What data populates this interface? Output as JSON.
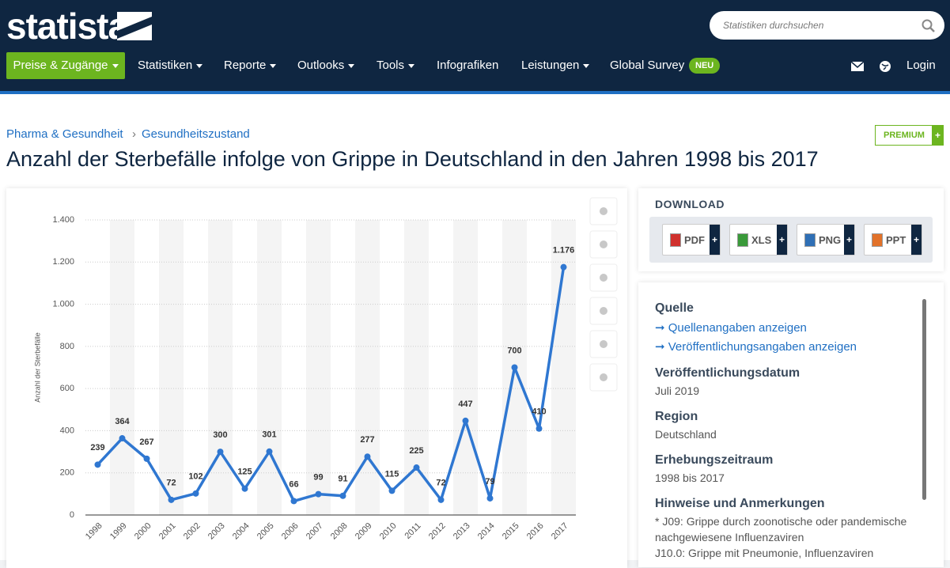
{
  "header": {
    "logo": "statista",
    "search_placeholder": "Statistiken durchsuchen",
    "nav": [
      "Preise & Zugänge",
      "Statistiken",
      "Reporte",
      "Outlooks",
      "Tools",
      "Infografiken",
      "Leistungen",
      "Global Survey"
    ],
    "nav_badge": "NEU",
    "login": "Login"
  },
  "breadcrumb": [
    "Pharma & Gesundheit",
    "Gesundheitszustand"
  ],
  "premium": "PREMIUM",
  "plus": "+",
  "chart_data": {
    "type": "line",
    "title": "Anzahl der Sterbefälle infolge von Grippe in Deutschland in den Jahren 1998 bis 2017",
    "y_label": "Anzahl der Sterbefälle",
    "categories": [
      "1998",
      "1999",
      "2000",
      "2001",
      "2002",
      "2003",
      "2004",
      "2005",
      "2006",
      "2007",
      "2008",
      "2009",
      "2010",
      "2011",
      "2012",
      "2013",
      "2014",
      "2015",
      "2016",
      "2017"
    ],
    "values": [
      239,
      364,
      267,
      72,
      102,
      300,
      125,
      301,
      66,
      99,
      91,
      277,
      115,
      225,
      72,
      447,
      79,
      700,
      410,
      1176
    ],
    "value_labels": [
      "239",
      "364",
      "267",
      "72",
      "102",
      "300",
      "125",
      "301",
      "66",
      "99",
      "91",
      "277",
      "115",
      "225",
      "72",
      "447",
      "79",
      "700",
      "410",
      "1.176"
    ],
    "color": "#2f77d1",
    "ylim": [
      0,
      1400
    ],
    "yticks": [
      0,
      200,
      400,
      600,
      800,
      {
        "value": 1000,
        "label": "1.000"
      },
      {
        "value": 1200,
        "label": "1.200"
      },
      {
        "value": 1400,
        "label": "1.400"
      }
    ],
    "grid": true
  },
  "download": {
    "title": "DOWNLOAD",
    "formats": [
      "PDF",
      "XLS",
      "PNG",
      "PPT"
    ]
  },
  "info": {
    "source": {
      "heading": "Quelle",
      "links": [
        "Quellenangaben anzeigen",
        "Veröffentlichungsangaben anzeigen"
      ]
    },
    "date": {
      "heading": "Veröffentlichungsdatum",
      "text": "Juli 2019"
    },
    "region": {
      "heading": "Region",
      "text": "Deutschland"
    },
    "period": {
      "heading": "Erhebungszeitraum",
      "text": "1998 bis 2017"
    },
    "notes": {
      "heading": "Hinweise und Anmerkungen",
      "lines": [
        "* J09: Grippe durch zoonotische oder pandemische",
        "nachgewiesene Influenzaviren",
        "J10.0: Grippe mit Pneumonie, Influenzaviren"
      ]
    }
  }
}
